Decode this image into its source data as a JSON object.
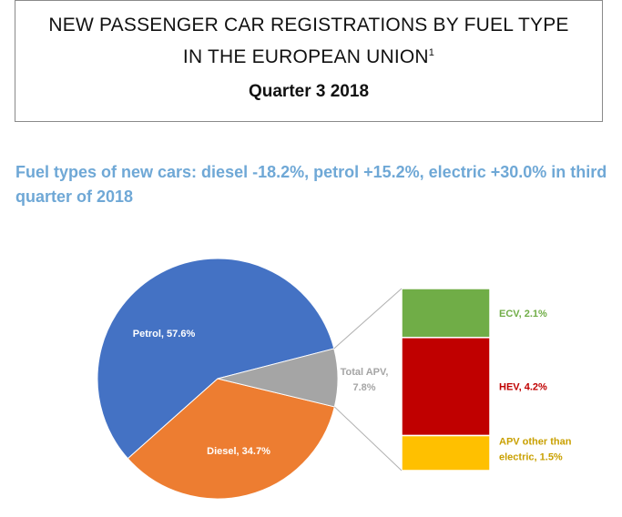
{
  "header": {
    "title_line1": "NEW PASSENGER CAR REGISTRATIONS BY FUEL TYPE",
    "title_line2": "IN THE EUROPEAN UNION",
    "footnote_marker": "1",
    "subtitle": "Quarter 3 2018"
  },
  "headline": "Fuel types of new cars: diesel -18.2%, petrol +15.2%, electric +30.0% in third quarter of 2018",
  "chart_data": {
    "type": "pie",
    "title": "",
    "slices": [
      {
        "name": "Petrol",
        "value": 57.6,
        "label": "Petrol, 57.6%",
        "color": "#4472c4"
      },
      {
        "name": "Diesel",
        "value": 34.7,
        "label": "Diesel, 34.7%",
        "color": "#ed7d31"
      },
      {
        "name": "Total APV",
        "value": 7.8,
        "label": [
          "Total APV,",
          "7.8%"
        ],
        "color": "#a5a5a5"
      }
    ],
    "breakdown": {
      "of": "Total APV",
      "type": "stacked-bar",
      "segments": [
        {
          "name": "ECV",
          "value": 2.1,
          "label": "ECV, 2.1%",
          "color": "#70ad47"
        },
        {
          "name": "HEV",
          "value": 4.2,
          "label": "HEV, 4.2%",
          "color": "#c00000"
        },
        {
          "name": "APV other than electric",
          "value": 1.5,
          "label": [
            "APV other than",
            "electric, 1.5%"
          ],
          "color": "#ffc000"
        }
      ]
    },
    "label_colors": {
      "pie_inside": "#ffffff",
      "apv": "#a5a5a5",
      "ecv": "#70ad47",
      "hev": "#c00000",
      "apv_other": "#c9a000"
    }
  }
}
